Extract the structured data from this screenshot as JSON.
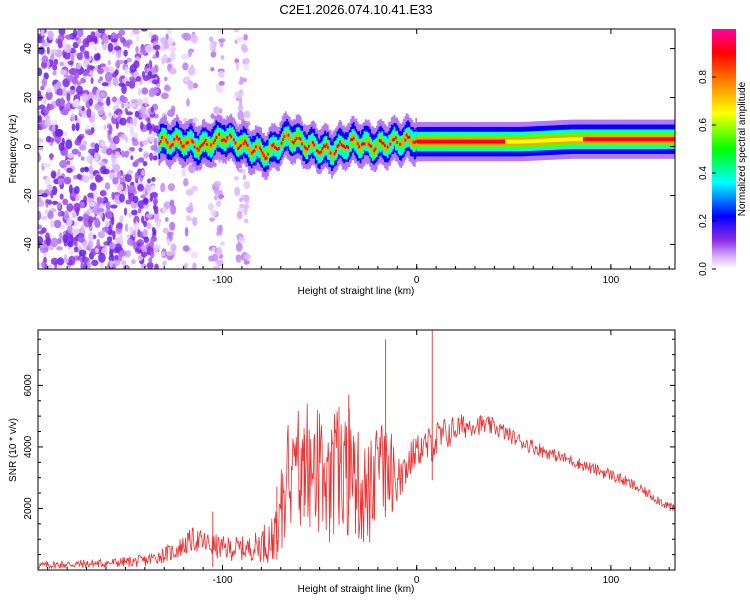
{
  "title": "C2E1.2026.074.10.41.E33",
  "chart_data": [
    {
      "type": "heatmap",
      "title": "C2E1.2026.074.10.41.E33",
      "xlabel": "Height of straight line (km)",
      "ylabel": "Frequency (Hz)",
      "xlim": [
        -195,
        133
      ],
      "ylim": [
        -50,
        48
      ],
      "xticks": [
        -100,
        0,
        100
      ],
      "yticks": [
        -40,
        -20,
        0,
        20,
        40
      ],
      "colorbar": {
        "label": "Normalized spectral amplitude",
        "range": [
          0.0,
          1.0
        ],
        "ticks": [
          0.0,
          0.2,
          0.4,
          0.6,
          0.8
        ],
        "colormap": [
          "#ffffff",
          "#d9b3ff",
          "#8a2be2",
          "#0000ff",
          "#00ffff",
          "#00ff00",
          "#ffff00",
          "#ff8000",
          "#ff0000",
          "#ff00a0"
        ]
      },
      "regions": [
        {
          "name": "broadband noise",
          "x": [
            -195,
            -133
          ],
          "freq_range": [
            -50,
            48
          ],
          "amplitude": 0.15
        },
        {
          "name": "sparse noise",
          "x": [
            -133,
            -85
          ],
          "freq_range": [
            -50,
            48
          ],
          "amplitude": 0.05
        },
        {
          "name": "meandering line",
          "x": [
            -133,
            0
          ],
          "center_freq": [
            2,
            2,
            0,
            4,
            0,
            -3,
            4,
            0,
            -2,
            2,
            0,
            2,
            3
          ],
          "amplitude": 0.5
        },
        {
          "name": "steady line",
          "x": [
            0,
            133
          ],
          "center_freq": [
            2,
            2,
            2,
            3,
            3,
            3
          ],
          "amplitude": 0.9
        }
      ]
    },
    {
      "type": "line",
      "xlabel": "Height of straight line (km)",
      "ylabel": "SNR (10 * v/v)",
      "xlim": [
        -195,
        133
      ],
      "ylim": [
        0,
        7800
      ],
      "xticks": [
        -100,
        0,
        100
      ],
      "yticks": [
        2000,
        4000,
        6000
      ],
      "color": "#ee3030",
      "envelope": {
        "x": [
          -195,
          -160,
          -140,
          -125,
          -115,
          -100,
          -85,
          -75,
          -65,
          -55,
          -45,
          -35,
          -25,
          -18,
          -10,
          -5,
          0,
          5,
          10,
          20,
          30,
          40,
          50,
          60,
          70,
          80,
          90,
          100,
          110,
          120,
          133
        ],
        "y": [
          150,
          220,
          300,
          600,
          1000,
          700,
          700,
          1000,
          2800,
          3000,
          2600,
          3000,
          2400,
          3200,
          2900,
          3400,
          3900,
          4000,
          4200,
          4600,
          4750,
          4650,
          4300,
          4000,
          3750,
          3550,
          3300,
          3100,
          2800,
          2450,
          1950
        ],
        "amp": [
          120,
          150,
          200,
          300,
          400,
          400,
          400,
          800,
          1700,
          1800,
          1800,
          1900,
          1800,
          1600,
          900,
          700,
          500,
          600,
          700,
          450,
          350,
          300,
          250,
          250,
          200,
          200,
          200,
          200,
          180,
          170,
          160
        ]
      },
      "spikes": [
        {
          "x": -105,
          "y": 1900
        },
        {
          "x": -72,
          "y": 2700
        },
        {
          "x": -58,
          "y": 4600
        },
        {
          "x": -40,
          "y": 5300
        },
        {
          "x": -35,
          "y": 5700
        },
        {
          "x": -16,
          "y": 7500
        },
        {
          "x": 8,
          "y": 7800
        }
      ]
    }
  ]
}
